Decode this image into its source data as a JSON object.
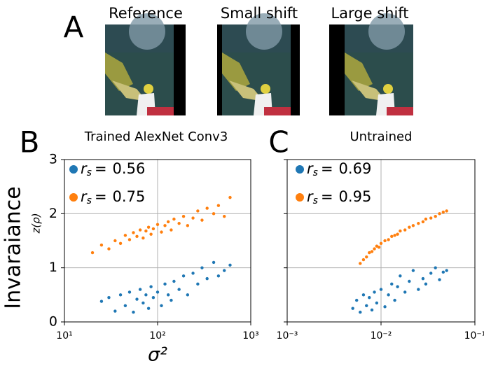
{
  "panel_a": {
    "label": "A",
    "images": [
      {
        "title": "Reference",
        "color": "#000000"
      },
      {
        "title": "Small shift",
        "color": "#ff7f0e"
      },
      {
        "title": "Large shift",
        "color": "#1f77b4"
      }
    ]
  },
  "chart_data": [
    {
      "type": "scatter",
      "panel_label": "B",
      "title": "Trained AlexNet Conv3",
      "xlabel": "σ²",
      "ylabel": "Invaraiance",
      "ylabel_sub": "z(ρ)",
      "log_x": true,
      "grid": true,
      "legend_symbol": "r",
      "legend_subscript": "s",
      "legend_relation": "=",
      "xlim": [
        10,
        1000
      ],
      "xticks": [
        {
          "value": 10,
          "label": "10¹"
        },
        {
          "value": 100,
          "label": "10²"
        },
        {
          "value": 1000,
          "label": "10³"
        }
      ],
      "ylim": [
        0,
        3
      ],
      "yticks": [
        0,
        1,
        2,
        3
      ],
      "series": [
        {
          "name": "Large shift",
          "color": "#1f77b4",
          "r_s": 0.56,
          "x": [
            25,
            30,
            35,
            40,
            45,
            50,
            55,
            60,
            65,
            70,
            75,
            80,
            85,
            90,
            100,
            110,
            120,
            130,
            140,
            150,
            170,
            190,
            210,
            240,
            270,
            300,
            340,
            400,
            450,
            520,
            600
          ],
          "values": [
            0.38,
            0.45,
            0.2,
            0.5,
            0.3,
            0.55,
            0.18,
            0.42,
            0.6,
            0.35,
            0.5,
            0.25,
            0.65,
            0.45,
            0.55,
            0.3,
            0.7,
            0.5,
            0.4,
            0.75,
            0.6,
            0.85,
            0.5,
            0.9,
            0.7,
            1.0,
            0.8,
            1.1,
            0.85,
            0.95,
            1.05
          ]
        },
        {
          "name": "Small shift",
          "color": "#ff7f0e",
          "r_s": 0.75,
          "x": [
            20,
            25,
            30,
            35,
            40,
            45,
            50,
            55,
            60,
            65,
            70,
            75,
            80,
            85,
            90,
            100,
            110,
            120,
            130,
            140,
            150,
            170,
            190,
            210,
            240,
            270,
            300,
            340,
            400,
            450,
            520,
            600
          ],
          "values": [
            1.28,
            1.42,
            1.35,
            1.5,
            1.45,
            1.6,
            1.52,
            1.65,
            1.58,
            1.7,
            1.55,
            1.68,
            1.75,
            1.62,
            1.72,
            1.8,
            1.66,
            1.78,
            1.85,
            1.7,
            1.9,
            1.82,
            1.95,
            1.78,
            1.92,
            2.05,
            1.88,
            2.1,
            2.0,
            2.15,
            1.95,
            2.3
          ]
        }
      ]
    },
    {
      "type": "scatter",
      "panel_label": "C",
      "title": "Untrained",
      "log_x": true,
      "grid": true,
      "legend_symbol": "r",
      "legend_subscript": "s",
      "legend_relation": "=",
      "xlim": [
        0.001,
        0.1
      ],
      "xticks": [
        {
          "value": 0.001,
          "label": "10⁻³"
        },
        {
          "value": 0.01,
          "label": "10⁻²"
        },
        {
          "value": 0.1,
          "label": "10⁻¹"
        }
      ],
      "ylim": [
        0,
        3
      ],
      "yticks": [
        0,
        1,
        2,
        3
      ],
      "series": [
        {
          "name": "Large shift",
          "color": "#1f77b4",
          "r_s": 0.69,
          "x": [
            0.005,
            0.0055,
            0.006,
            0.0065,
            0.007,
            0.0075,
            0.008,
            0.0085,
            0.009,
            0.01,
            0.011,
            0.012,
            0.013,
            0.014,
            0.015,
            0.016,
            0.018,
            0.02,
            0.022,
            0.025,
            0.028,
            0.03,
            0.034,
            0.038,
            0.042,
            0.046,
            0.05
          ],
          "values": [
            0.25,
            0.4,
            0.18,
            0.5,
            0.3,
            0.45,
            0.22,
            0.55,
            0.35,
            0.6,
            0.28,
            0.5,
            0.7,
            0.4,
            0.65,
            0.85,
            0.55,
            0.75,
            0.95,
            0.6,
            0.8,
            0.7,
            0.9,
            1.0,
            0.78,
            0.92,
            0.95
          ]
        },
        {
          "name": "Small shift",
          "color": "#ff7f0e",
          "r_s": 0.95,
          "x": [
            0.006,
            0.0065,
            0.007,
            0.0075,
            0.008,
            0.0085,
            0.009,
            0.0095,
            0.01,
            0.011,
            0.012,
            0.013,
            0.014,
            0.015,
            0.016,
            0.018,
            0.02,
            0.022,
            0.025,
            0.028,
            0.03,
            0.034,
            0.038,
            0.042,
            0.046,
            0.05
          ],
          "values": [
            1.08,
            1.15,
            1.2,
            1.28,
            1.3,
            1.35,
            1.4,
            1.38,
            1.45,
            1.5,
            1.52,
            1.58,
            1.6,
            1.62,
            1.68,
            1.7,
            1.75,
            1.78,
            1.82,
            1.85,
            1.9,
            1.92,
            1.95,
            2.0,
            2.03,
            2.05
          ]
        }
      ]
    }
  ]
}
